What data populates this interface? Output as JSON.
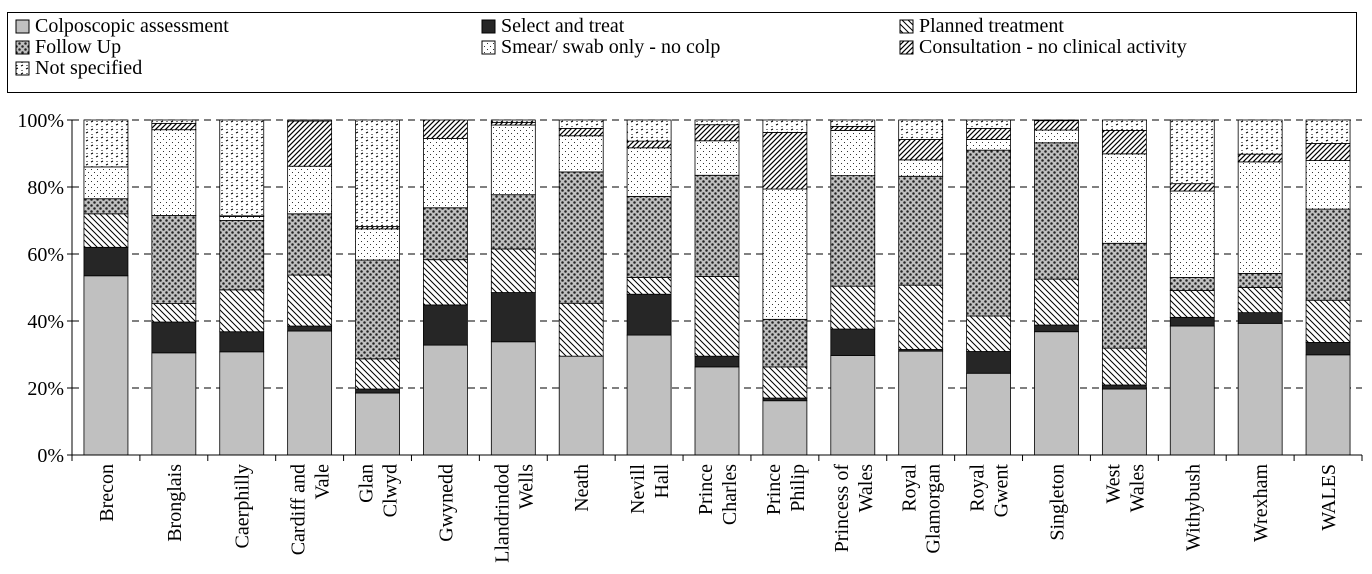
{
  "chart_data": {
    "type": "bar",
    "stacked": true,
    "categories": [
      "Brecon",
      "Bronglais",
      "Caerphilly",
      "Cardiff and Vale",
      "Glan Clwyd",
      "Gwynedd",
      "Llandrindod Wells",
      "Neath",
      "Nevill Hall",
      "Prince Charles",
      "Prince Philip",
      "Princess of Wales",
      "Royal Glamorgan",
      "Royal Gwent",
      "Singleton",
      "West Wales",
      "Withybush",
      "Wrexham",
      "WALES"
    ],
    "series": [
      {
        "name": "Colposcopic assessment",
        "pattern": "solid-grey",
        "values": [
          53.5,
          30.5,
          30.8,
          37.0,
          18.5,
          32.8,
          33.8,
          29.5,
          35.8,
          26.3,
          16.2,
          29.7,
          31.0,
          24.4,
          36.8,
          19.7,
          38.5,
          39.3,
          29.9
        ]
      },
      {
        "name": "Select and treat",
        "pattern": "solid-black",
        "values": [
          8.5,
          9.2,
          6.0,
          1.5,
          1.2,
          12.0,
          14.7,
          0.0,
          12.2,
          3.2,
          0.8,
          7.9,
          0.5,
          6.5,
          2.0,
          1.2,
          2.6,
          3.2,
          3.7
        ]
      },
      {
        "name": "Planned treatment",
        "pattern": "diag-back",
        "values": [
          10.0,
          5.5,
          12.5,
          15.2,
          9.0,
          13.5,
          13.0,
          15.8,
          5.0,
          23.8,
          9.3,
          12.8,
          19.2,
          10.6,
          13.7,
          11.0,
          8.0,
          7.5,
          12.6
        ]
      },
      {
        "name": "Follow Up",
        "pattern": "dots-dense",
        "values": [
          4.5,
          26.3,
          20.7,
          18.3,
          29.5,
          15.5,
          16.2,
          39.2,
          24.2,
          30.2,
          14.2,
          33.0,
          32.5,
          49.5,
          40.7,
          31.3,
          3.9,
          4.2,
          27.2
        ]
      },
      {
        "name": "Smear/ swab only - no colp",
        "pattern": "dots-sparse",
        "values": [
          9.5,
          25.6,
          1.2,
          14.2,
          9.3,
          20.7,
          20.8,
          10.8,
          14.5,
          10.3,
          38.9,
          13.5,
          4.9,
          3.2,
          3.8,
          26.7,
          25.8,
          33.3,
          14.5
        ]
      },
      {
        "name": "Consultation - no clinical activity",
        "pattern": "diag-forward",
        "values": [
          0.0,
          1.9,
          0.2,
          13.5,
          0.7,
          5.5,
          0.8,
          2.2,
          2.0,
          4.8,
          16.9,
          1.2,
          6.1,
          3.3,
          2.8,
          7.0,
          2.2,
          2.3,
          5.1
        ]
      },
      {
        "name": "Not specified",
        "pattern": "dashes",
        "values": [
          14.0,
          1.0,
          28.6,
          0.3,
          31.8,
          0.0,
          0.7,
          2.5,
          6.3,
          1.4,
          3.7,
          1.9,
          5.8,
          2.5,
          0.2,
          3.1,
          19.0,
          10.2,
          7.0
        ]
      }
    ],
    "y_ticks": [
      "0%",
      "20%",
      "40%",
      "60%",
      "80%",
      "100%"
    ],
    "ylim": [
      0,
      100
    ],
    "grid": true,
    "legend": "top"
  }
}
